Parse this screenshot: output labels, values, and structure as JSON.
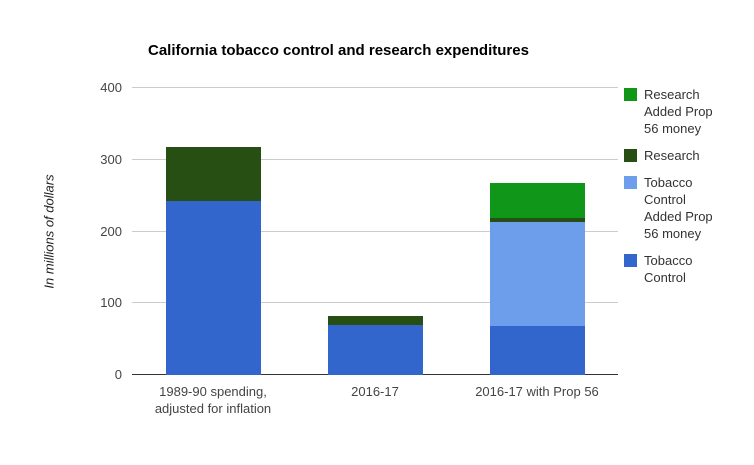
{
  "chart_data": {
    "type": "bar",
    "stacked": true,
    "title": "California tobacco control and research expenditures",
    "ylabel": "In millions of dollars",
    "xlabel": "",
    "ylim": [
      0,
      400
    ],
    "yticks": [
      0,
      100,
      200,
      300,
      400
    ],
    "grid": true,
    "legend_position": "right",
    "background": "#ffffff",
    "categories": [
      "1989-90 spending,\nadjusted for inflation",
      "2016-17",
      "2016-17 with Prop 56"
    ],
    "series": [
      {
        "name": "Tobacco Control",
        "color": "#3366cc",
        "values": [
          242,
          70,
          68
        ]
      },
      {
        "name": "Tobacco Control Added Prop 56 money",
        "color": "#6d9eeb",
        "values": [
          0,
          0,
          145
        ]
      },
      {
        "name": "Research",
        "color": "#274e13",
        "values": [
          76,
          12,
          6
        ]
      },
      {
        "name": "Research Added Prop 56 money",
        "color": "#109618",
        "values": [
          0,
          0,
          48
        ]
      }
    ]
  }
}
